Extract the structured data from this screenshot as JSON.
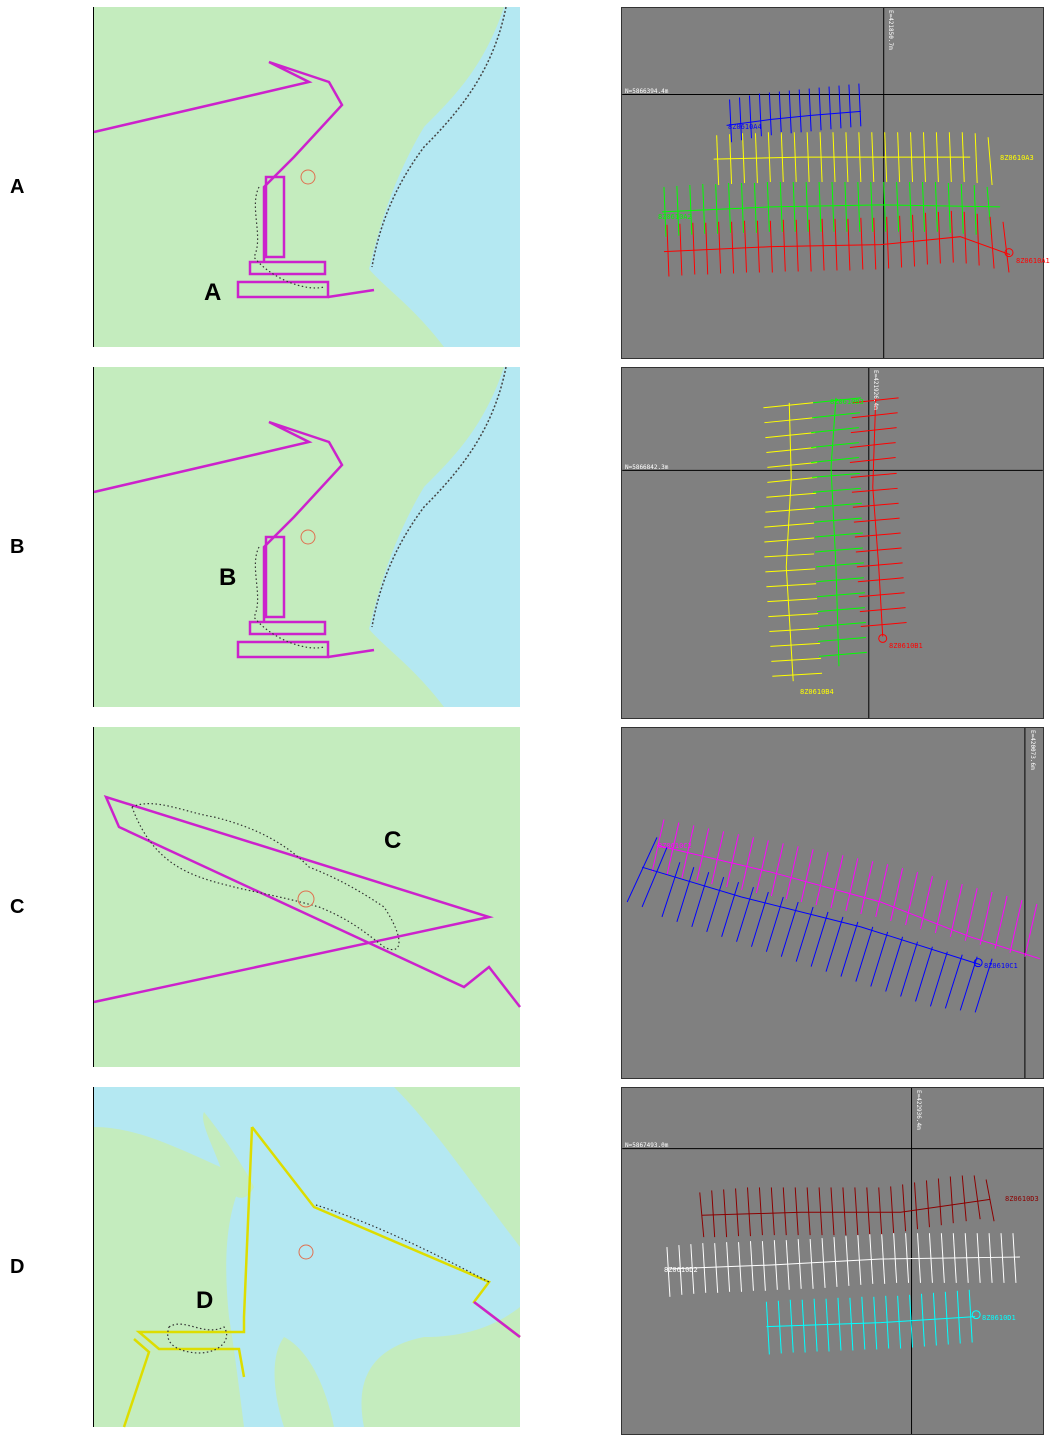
{
  "rows": [
    {
      "id": "A",
      "label": "A",
      "map_letter": "A",
      "easting": "E=421850.7m",
      "northing": "N=5866394.4m",
      "lines": [
        {
          "name": "8Z0610A4",
          "color": "#0000ff"
        },
        {
          "name": "8Z0610A3",
          "color": "#ffff00"
        },
        {
          "name": "8Z0610A2",
          "color": "#00ff00"
        },
        {
          "name": "8Z0610A1",
          "color": "#ff0000"
        }
      ]
    },
    {
      "id": "B",
      "label": "B",
      "map_letter": "B",
      "easting": "E=421926.4m",
      "northing": "N=5866842.3m",
      "lines": [
        {
          "name": "8Z0610B3",
          "color": "#00ff00"
        },
        {
          "name": "8Z0610B1",
          "color": "#ff0000"
        },
        {
          "name": "8Z0610B4",
          "color": "#ffff00"
        }
      ]
    },
    {
      "id": "C",
      "label": "C",
      "map_letter": "C",
      "easting": "E=420073.6m",
      "northing": "",
      "lines": [
        {
          "name": "8Z0610C2",
          "color": "#ff00ff"
        },
        {
          "name": "8Z0610C1",
          "color": "#0000ff"
        }
      ]
    },
    {
      "id": "D",
      "label": "D",
      "map_letter": "D",
      "easting": "E=422936.4m",
      "northing": "N=5867493.0m",
      "lines": [
        {
          "name": "8Z0610D3",
          "color": "#8b0000"
        },
        {
          "name": "8Z0610D2",
          "color": "#ffffff"
        },
        {
          "name": "8Z0610D1",
          "color": "#00ffff"
        }
      ]
    }
  ],
  "colors": {
    "land": "#c4ecbe",
    "water": "#b4e8f2",
    "track": "#cc22cc",
    "track_d": "#dddd00",
    "plot_bg": "#808080"
  }
}
